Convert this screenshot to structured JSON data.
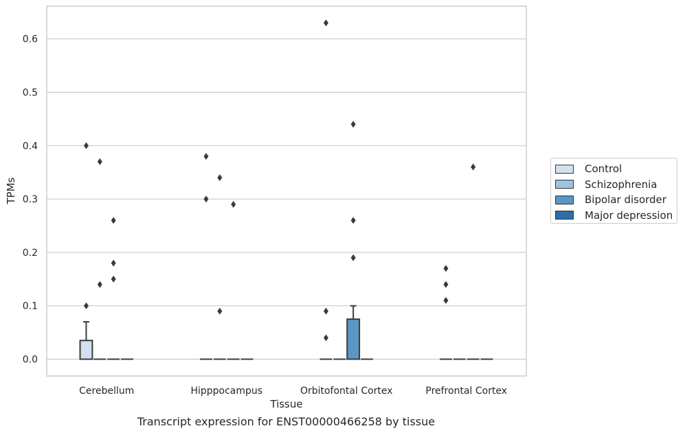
{
  "chart_data": {
    "type": "box",
    "xlabel": "Tissue",
    "ylabel": "TPMs",
    "caption": "Transcript expression for ENST00000466258 by tissue",
    "categories": [
      "Cerebellum",
      "Hipppocampus",
      "Orbitofontal Cortex",
      "Prefrontal Cortex"
    ],
    "ylim": [
      -0.03,
      0.66
    ],
    "yticks": [
      "0.0",
      "0.1",
      "0.2",
      "0.3",
      "0.4",
      "0.5",
      "0.6"
    ],
    "grid": true,
    "legend_position": "right",
    "series": [
      {
        "name": "Control",
        "color": "#d2e0f1",
        "boxes": [
          {
            "q1": 0,
            "median": 0,
            "q3": 0.035,
            "whisker_low": 0,
            "whisker_high": 0.07,
            "outliers": [
              0.1,
              0.4
            ]
          },
          {
            "q1": 0,
            "median": 0,
            "q3": 0,
            "whisker_low": 0,
            "whisker_high": 0,
            "outliers": [
              0.3,
              0.38
            ]
          },
          {
            "q1": 0,
            "median": 0,
            "q3": 0,
            "whisker_low": 0,
            "whisker_high": 0,
            "outliers": [
              0.04,
              0.09,
              0.63
            ]
          },
          {
            "q1": 0,
            "median": 0,
            "q3": 0,
            "whisker_low": 0,
            "whisker_high": 0,
            "outliers": [
              0.11,
              0.14,
              0.17
            ]
          }
        ]
      },
      {
        "name": "Schizophrenia",
        "color": "#9fc3dd",
        "boxes": [
          {
            "q1": 0,
            "median": 0,
            "q3": 0,
            "whisker_low": 0,
            "whisker_high": 0,
            "outliers": [
              0.14,
              0.37
            ]
          },
          {
            "q1": 0,
            "median": 0,
            "q3": 0,
            "whisker_low": 0,
            "whisker_high": 0,
            "outliers": [
              0.09,
              0.34
            ]
          },
          {
            "q1": 0,
            "median": 0,
            "q3": 0,
            "whisker_low": 0,
            "whisker_high": 0,
            "outliers": []
          },
          {
            "q1": 0,
            "median": 0,
            "q3": 0,
            "whisker_low": 0,
            "whisker_high": 0,
            "outliers": []
          }
        ]
      },
      {
        "name": "Bipolar disorder",
        "color": "#5a97c3",
        "boxes": [
          {
            "q1": 0,
            "median": 0,
            "q3": 0,
            "whisker_low": 0,
            "whisker_high": 0,
            "outliers": [
              0.15,
              0.18,
              0.26
            ]
          },
          {
            "q1": 0,
            "median": 0,
            "q3": 0,
            "whisker_low": 0,
            "whisker_high": 0,
            "outliers": [
              0.29
            ]
          },
          {
            "q1": 0,
            "median": 0,
            "q3": 0.075,
            "whisker_low": 0,
            "whisker_high": 0.1,
            "outliers": [
              0.19,
              0.26,
              0.44
            ]
          },
          {
            "q1": 0,
            "median": 0,
            "q3": 0,
            "whisker_low": 0,
            "whisker_high": 0,
            "outliers": [
              0.36
            ]
          }
        ]
      },
      {
        "name": "Major depression",
        "color": "#2e6ea5",
        "boxes": [
          {
            "q1": 0,
            "median": 0,
            "q3": 0,
            "whisker_low": 0,
            "whisker_high": 0,
            "outliers": []
          },
          {
            "q1": 0,
            "median": 0,
            "q3": 0,
            "whisker_low": 0,
            "whisker_high": 0,
            "outliers": []
          },
          {
            "q1": 0,
            "median": 0,
            "q3": 0,
            "whisker_low": 0,
            "whisker_high": 0,
            "outliers": []
          },
          {
            "q1": 0,
            "median": 0,
            "q3": 0,
            "whisker_low": 0,
            "whisker_high": 0,
            "outliers": []
          }
        ]
      }
    ]
  }
}
